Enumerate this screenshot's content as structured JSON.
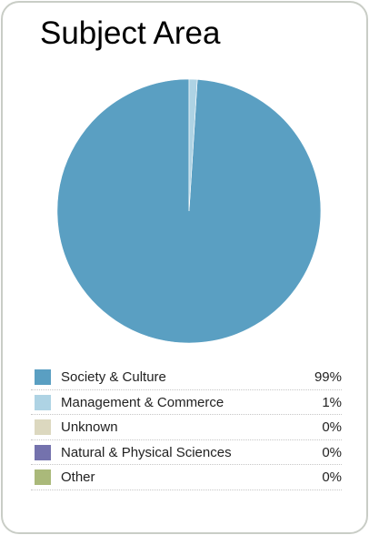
{
  "panel": {
    "title": "Subject Area"
  },
  "chart_data": {
    "type": "pie",
    "title": "Subject Area",
    "categories": [
      "Society & Culture",
      "Management & Commerce",
      "Unknown",
      "Natural & Physical Sciences",
      "Other"
    ],
    "values": [
      99,
      1,
      0,
      0,
      0
    ],
    "value_labels": [
      "99%",
      "1%",
      "0%",
      "0%",
      "0%"
    ],
    "colors": [
      "#5a9fc2",
      "#aed3e4",
      "#dcd8bf",
      "#7472ad",
      "#aab97a"
    ],
    "unit": "%",
    "legend_placement": "bottom"
  }
}
